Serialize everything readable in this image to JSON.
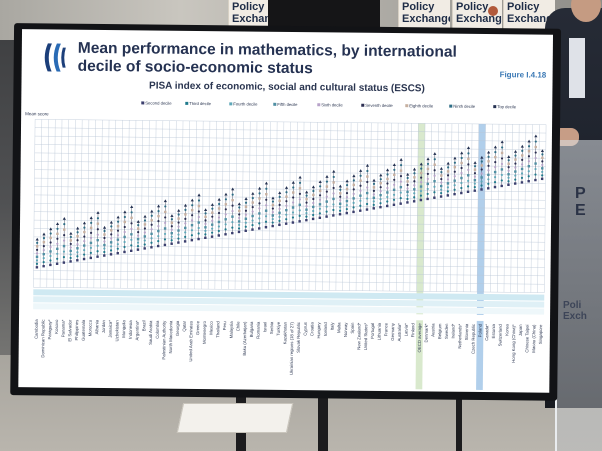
{
  "banners": [
    {
      "line1": "Policy",
      "line2": "Exchange"
    },
    {
      "line1": "Policy",
      "line2": "Exchange"
    },
    {
      "line1": "Policy",
      "line2": "Exchange"
    },
    {
      "line1": "Policy",
      "line2": "Exchange"
    }
  ],
  "lectern": {
    "text_a": "P",
    "text_b": "E",
    "small1": "Poli",
    "small2": "Exch"
  },
  "screen": {
    "title": "Mean performance in mathematics, by international decile of socio-economic status",
    "figure_label": "Figure I.4.18",
    "chart_title": "PISA index of economic, social and cultural status (ESCS)",
    "y_axis_label": "Mean score"
  },
  "chart_data": {
    "type": "scatter",
    "title": "PISA index of economic, social and cultural status (ESCS)",
    "ylabel": "Mean score",
    "legend": [
      "Second decile",
      "Third decile",
      "Fourth decile",
      "Fifth decile",
      "Sixth decile",
      "Seventh decile",
      "Eighth decile",
      "Ninth decile",
      "Top decile"
    ],
    "legend_colors": [
      "#3b3f6e",
      "#1f7a8c",
      "#5fa7b8",
      "#4f8fa3",
      "#b7a2c9",
      "#2c2f52",
      "#c7b0a0",
      "#2e6e86",
      "#253252"
    ],
    "categories": [
      "Cambodia",
      "Dominican Republic",
      "Paraguay*",
      "Kosovo",
      "Panama*",
      "El Salvador",
      "Philippines",
      "Guatemala",
      "Morocco",
      "Albania",
      "Jordan",
      "Jamaica*",
      "Uzbekistan",
      "Mongolia",
      "Indonesia",
      "Argentina*",
      "Brazil",
      "Saudi Arabia",
      "Colombia",
      "Palestinian Authority",
      "North Macedonia",
      "Georgia",
      "Qatar",
      "United Arab Emirates",
      "Greece",
      "Montenegro",
      "Mexico",
      "Thailand",
      "Peru",
      "Malaysia",
      "Chile",
      "Baku (Azerbaijan)",
      "Bulgaria",
      "Romania",
      "Israel",
      "Serbia",
      "Turkiye",
      "Kazakhstan",
      "Ukrainian regions (18 of 27)",
      "Slovak Republic",
      "Cyprus",
      "Croatia",
      "Hungary",
      "Iceland",
      "Italy",
      "Malta",
      "Norway",
      "Spain",
      "New Zealand*",
      "United States*",
      "Portugal",
      "Lithuania",
      "France",
      "Germany",
      "Australia*",
      "Latvia*",
      "Finland",
      "OECD average",
      "Denmark*",
      "Austria",
      "Belgium",
      "Sweden",
      "Ireland*",
      "Netherlands*",
      "Slovenia",
      "Czech Republic",
      "Poland",
      "Canada*",
      "Estonia",
      "Switzerland",
      "Korea",
      "Hong Kong (China)*",
      "Japan",
      "Chinese Taipei",
      "Macao (China)",
      "Singapore"
    ],
    "highlights": [
      {
        "category": "OECD average",
        "color": "#cfe3c0"
      },
      {
        "category": "Poland",
        "color": "#9dc3e6"
      }
    ],
    "grid": true
  }
}
